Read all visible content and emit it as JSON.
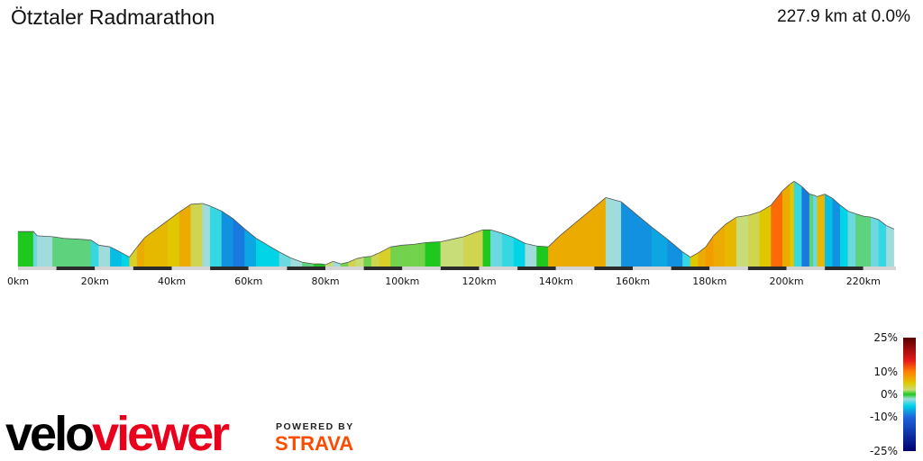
{
  "header": {
    "title": "Ötztaler Radmarathon",
    "summary": "227.9 km at 0.0%"
  },
  "branding": {
    "logo_part1": "velo",
    "logo_part2": "viewer",
    "powered_by": "POWERED BY",
    "strava": "STRAVA"
  },
  "colors": {
    "velo": "#000000",
    "viewer": "#e8001c",
    "strava": "#fc4c02"
  },
  "chart_data": {
    "type": "area",
    "xlabel": "",
    "ylabel": "",
    "xlim": [
      0,
      230
    ],
    "x_ticks": [
      "0km",
      "20km",
      "40km",
      "60km",
      "80km",
      "100km",
      "120km",
      "140km",
      "160km",
      "180km",
      "200km",
      "220km"
    ],
    "x_tick_values": [
      0,
      20,
      40,
      60,
      80,
      100,
      120,
      140,
      160,
      180,
      200,
      220
    ],
    "elevation_profile": {
      "distance_km": [
        0,
        4,
        5,
        9,
        12,
        16,
        19,
        21,
        24,
        27,
        29,
        31,
        33,
        36,
        39,
        42,
        45,
        48,
        50,
        53,
        56,
        59,
        62,
        65,
        68,
        71,
        74,
        77,
        79,
        80,
        82,
        84,
        86,
        88,
        90,
        92,
        94,
        97,
        100,
        103,
        106,
        110,
        113,
        116,
        119,
        121,
        123,
        126,
        129,
        132,
        135,
        138,
        141,
        145,
        149,
        153,
        157,
        161,
        165,
        169,
        173,
        175,
        177,
        179,
        181,
        184,
        187,
        190,
        193,
        196,
        199,
        201,
        202,
        204,
        206,
        207,
        208,
        210,
        212,
        214,
        216,
        218,
        220,
        222,
        224,
        226,
        228
      ],
      "relative_height": [
        0.4,
        0.4,
        0.35,
        0.34,
        0.32,
        0.31,
        0.3,
        0.24,
        0.22,
        0.15,
        0.1,
        0.22,
        0.33,
        0.43,
        0.53,
        0.63,
        0.72,
        0.73,
        0.7,
        0.64,
        0.55,
        0.43,
        0.32,
        0.24,
        0.16,
        0.09,
        0.04,
        0.02,
        0.02,
        0.01,
        0.05,
        0.02,
        0.04,
        0.08,
        0.1,
        0.11,
        0.15,
        0.22,
        0.24,
        0.25,
        0.27,
        0.28,
        0.31,
        0.34,
        0.39,
        0.42,
        0.42,
        0.38,
        0.33,
        0.26,
        0.23,
        0.22,
        0.35,
        0.5,
        0.65,
        0.8,
        0.75,
        0.6,
        0.45,
        0.31,
        0.16,
        0.1,
        0.15,
        0.22,
        0.35,
        0.48,
        0.57,
        0.59,
        0.63,
        0.71,
        0.88,
        0.96,
        0.99,
        0.93,
        0.84,
        0.83,
        0.81,
        0.84,
        0.79,
        0.71,
        0.64,
        0.61,
        0.58,
        0.57,
        0.54,
        0.47,
        0.43
      ],
      "gradient_pct": [
        0,
        -3,
        -2,
        -1,
        -1,
        -1,
        -4,
        -2,
        -6,
        -5,
        4,
        7,
        6,
        6,
        5,
        7,
        3,
        -2,
        -4,
        -8,
        -9,
        -7,
        -5,
        -5,
        -3,
        -2,
        -1,
        0,
        0,
        2,
        -2,
        1,
        3,
        2,
        1,
        3,
        4,
        1,
        1,
        1,
        0,
        2,
        2,
        3,
        3,
        0,
        -3,
        -4,
        -5,
        -2,
        0,
        7,
        7,
        7,
        7,
        -2,
        -8,
        -8,
        -7,
        -8,
        -4,
        5,
        7,
        8,
        7,
        6,
        2,
        3,
        5,
        11,
        7,
        5,
        -4,
        -9,
        -1,
        -3,
        6,
        -6,
        -8,
        -5,
        -3,
        -1,
        -1,
        -3,
        -4,
        -2,
        -2
      ]
    },
    "gradient_scale": {
      "labels": [
        "25%",
        "10%",
        "0%",
        "-10%",
        "-25%"
      ],
      "stops": [
        {
          "pct": 25,
          "color": "#5a0000"
        },
        {
          "pct": 15,
          "color": "#e41a1c"
        },
        {
          "pct": 10,
          "color": "#ff7f00"
        },
        {
          "pct": 5,
          "color": "#e0c800"
        },
        {
          "pct": 2,
          "color": "#c8dc78"
        },
        {
          "pct": 0,
          "color": "#1ec81e"
        },
        {
          "pct": -2,
          "color": "#a0dcdc"
        },
        {
          "pct": -5,
          "color": "#00d4e6"
        },
        {
          "pct": -10,
          "color": "#1e64dc"
        },
        {
          "pct": -25,
          "color": "#00006e"
        }
      ]
    }
  }
}
